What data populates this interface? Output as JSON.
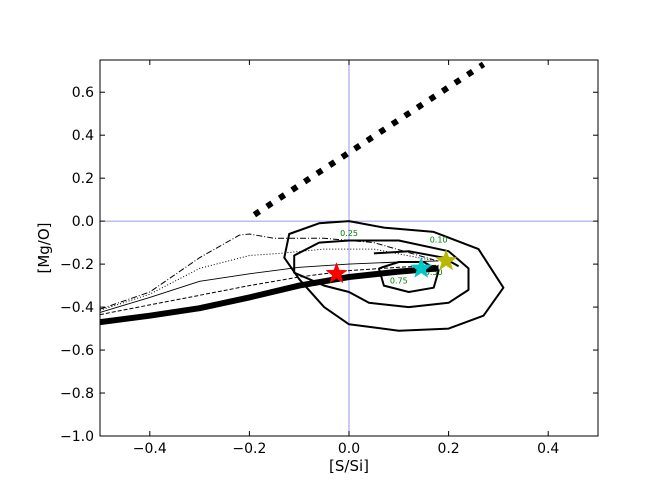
{
  "chart_data": {
    "type": "line",
    "xlabel": "[S/Si]",
    "ylabel": "[Mg/O]",
    "xlim": [
      -0.5,
      0.5
    ],
    "ylim": [
      -1.0,
      0.75
    ],
    "x_ticks": [
      -0.4,
      -0.2,
      0.0,
      0.2,
      0.4
    ],
    "x_tick_labels": [
      "−0.4",
      "−0.2",
      "0.0",
      "0.2",
      "0.4"
    ],
    "y_ticks": [
      -1.0,
      -0.8,
      -0.6,
      -0.4,
      -0.2,
      0.0,
      0.2,
      0.4,
      0.6
    ],
    "y_tick_labels": [
      "−1.0",
      "−0.8",
      "−0.6",
      "−0.4",
      "−0.2",
      "0.0",
      "0.2",
      "0.4",
      "0.6"
    ],
    "reference_lines": {
      "x": 0.0,
      "y": 0.0,
      "color": "#7a7ae6"
    },
    "series": [
      {
        "style": "thick-solid",
        "color": "#000000",
        "x": [
          -0.5,
          -0.4,
          -0.3,
          -0.2,
          -0.1,
          0.0,
          0.1,
          0.18
        ],
        "y": [
          -0.47,
          -0.44,
          -0.405,
          -0.355,
          -0.3,
          -0.26,
          -0.235,
          -0.22
        ]
      },
      {
        "style": "dashed",
        "color": "#000000",
        "x": [
          -0.5,
          -0.4,
          -0.3,
          -0.2,
          -0.1,
          0.0,
          0.1,
          0.18
        ],
        "y": [
          -0.435,
          -0.39,
          -0.345,
          -0.3,
          -0.26,
          -0.23,
          -0.215,
          -0.205
        ]
      },
      {
        "style": "thin-solid",
        "color": "#000000",
        "x": [
          -0.5,
          -0.4,
          -0.3,
          -0.2,
          -0.1,
          0.0,
          0.1,
          0.18
        ],
        "y": [
          -0.425,
          -0.355,
          -0.28,
          -0.245,
          -0.215,
          -0.2,
          -0.19,
          -0.185
        ]
      },
      {
        "style": "dotted",
        "color": "#000000",
        "x": [
          -0.5,
          -0.4,
          -0.3,
          -0.2,
          -0.14,
          -0.05,
          0.05,
          0.15,
          0.18
        ],
        "y": [
          -0.415,
          -0.34,
          -0.22,
          -0.16,
          -0.15,
          -0.13,
          -0.13,
          -0.175,
          -0.185
        ]
      },
      {
        "style": "dash-dot",
        "color": "#000000",
        "x": [
          -0.5,
          -0.4,
          -0.3,
          -0.22,
          -0.2,
          -0.15,
          -0.05,
          0.05,
          0.17
        ],
        "y": [
          -0.41,
          -0.33,
          -0.17,
          -0.065,
          -0.06,
          -0.08,
          -0.08,
          -0.1,
          -0.18
        ]
      },
      {
        "style": "thick-dotted",
        "color": "#000000",
        "x": [
          -0.19,
          0.27
        ],
        "y": [
          0.03,
          0.73
        ]
      }
    ],
    "contours": [
      {
        "label": "0.10",
        "label_at": [
          0.18,
          -0.1
        ],
        "points": [
          [
            0.07,
            -0.03
          ],
          [
            0.17,
            -0.05
          ],
          [
            0.26,
            -0.13
          ],
          [
            0.31,
            -0.31
          ],
          [
            0.27,
            -0.44
          ],
          [
            0.2,
            -0.5
          ],
          [
            0.1,
            -0.51
          ],
          [
            0.0,
            -0.48
          ],
          [
            -0.05,
            -0.4
          ],
          [
            -0.1,
            -0.27
          ],
          [
            -0.13,
            -0.17
          ],
          [
            -0.12,
            -0.06
          ],
          [
            -0.06,
            -0.01
          ],
          [
            0.0,
            0.0
          ],
          [
            0.07,
            -0.03
          ]
        ]
      },
      {
        "label": "0.25",
        "label_at": [
          0.0,
          -0.07
        ],
        "points": [
          [
            0.0,
            -0.09
          ],
          [
            0.1,
            -0.09
          ],
          [
            0.2,
            -0.14
          ],
          [
            0.24,
            -0.22
          ],
          [
            0.24,
            -0.32
          ],
          [
            0.2,
            -0.38
          ],
          [
            0.12,
            -0.4
          ],
          [
            0.04,
            -0.38
          ],
          [
            0.0,
            -0.33
          ],
          [
            -0.05,
            -0.3
          ],
          [
            -0.11,
            -0.24
          ],
          [
            -0.11,
            -0.16
          ],
          [
            -0.06,
            -0.1
          ],
          [
            0.0,
            -0.09
          ]
        ]
      },
      {
        "label": "0.50",
        "label_at": [
          0.17,
          -0.25
        ],
        "points": [
          [
            0.05,
            -0.15
          ],
          [
            0.12,
            -0.14
          ],
          [
            0.19,
            -0.17
          ],
          [
            0.22,
            -0.21
          ]
        ]
      },
      {
        "label": "0.75",
        "label_at": [
          0.1,
          -0.29
        ],
        "points": [
          [
            0.06,
            -0.22
          ],
          [
            0.1,
            -0.19
          ],
          [
            0.15,
            -0.19
          ],
          [
            0.18,
            -0.23
          ],
          [
            0.17,
            -0.31
          ],
          [
            0.12,
            -0.33
          ],
          [
            0.07,
            -0.3
          ],
          [
            0.06,
            -0.22
          ]
        ]
      }
    ],
    "stars": [
      {
        "color": "#ff0000",
        "x": -0.025,
        "y": -0.245
      },
      {
        "color": "#00c8c8",
        "x": 0.145,
        "y": -0.22
      },
      {
        "color": "#b8b800",
        "x": 0.195,
        "y": -0.185
      }
    ]
  }
}
